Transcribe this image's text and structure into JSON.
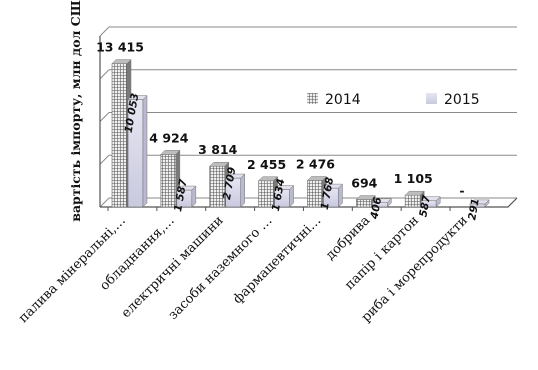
{
  "chart_data": {
    "type": "bar",
    "ylabel": "вартість імпорту, млн дол США",
    "categories": [
      "паливa мінеральні,…",
      "обладнання,…",
      "електричні машини",
      "засоби наземного …",
      "фармацевтичні…",
      "добрива",
      "папір і картон",
      "риба і морепродукти"
    ],
    "series": [
      {
        "name": "2014",
        "values": [
          13415,
          4924,
          3814,
          2455,
          2476,
          694,
          1105,
          0
        ],
        "labels": [
          "13 415",
          "4 924",
          "3 814",
          "2 455",
          "2 476",
          "694",
          "1 105",
          "-"
        ],
        "color": "#9a9a9a",
        "pattern": "grid"
      },
      {
        "name": "2015",
        "values": [
          10053,
          1587,
          2709,
          1634,
          1768,
          406,
          587,
          291
        ],
        "labels": [
          "10 053",
          "1 587",
          "2 709",
          "1 634",
          "1 768",
          "406",
          "587",
          "291"
        ],
        "color": "#d4d4ea"
      }
    ],
    "ylim": [
      0,
      16000
    ],
    "grid": true,
    "legend": "right"
  }
}
